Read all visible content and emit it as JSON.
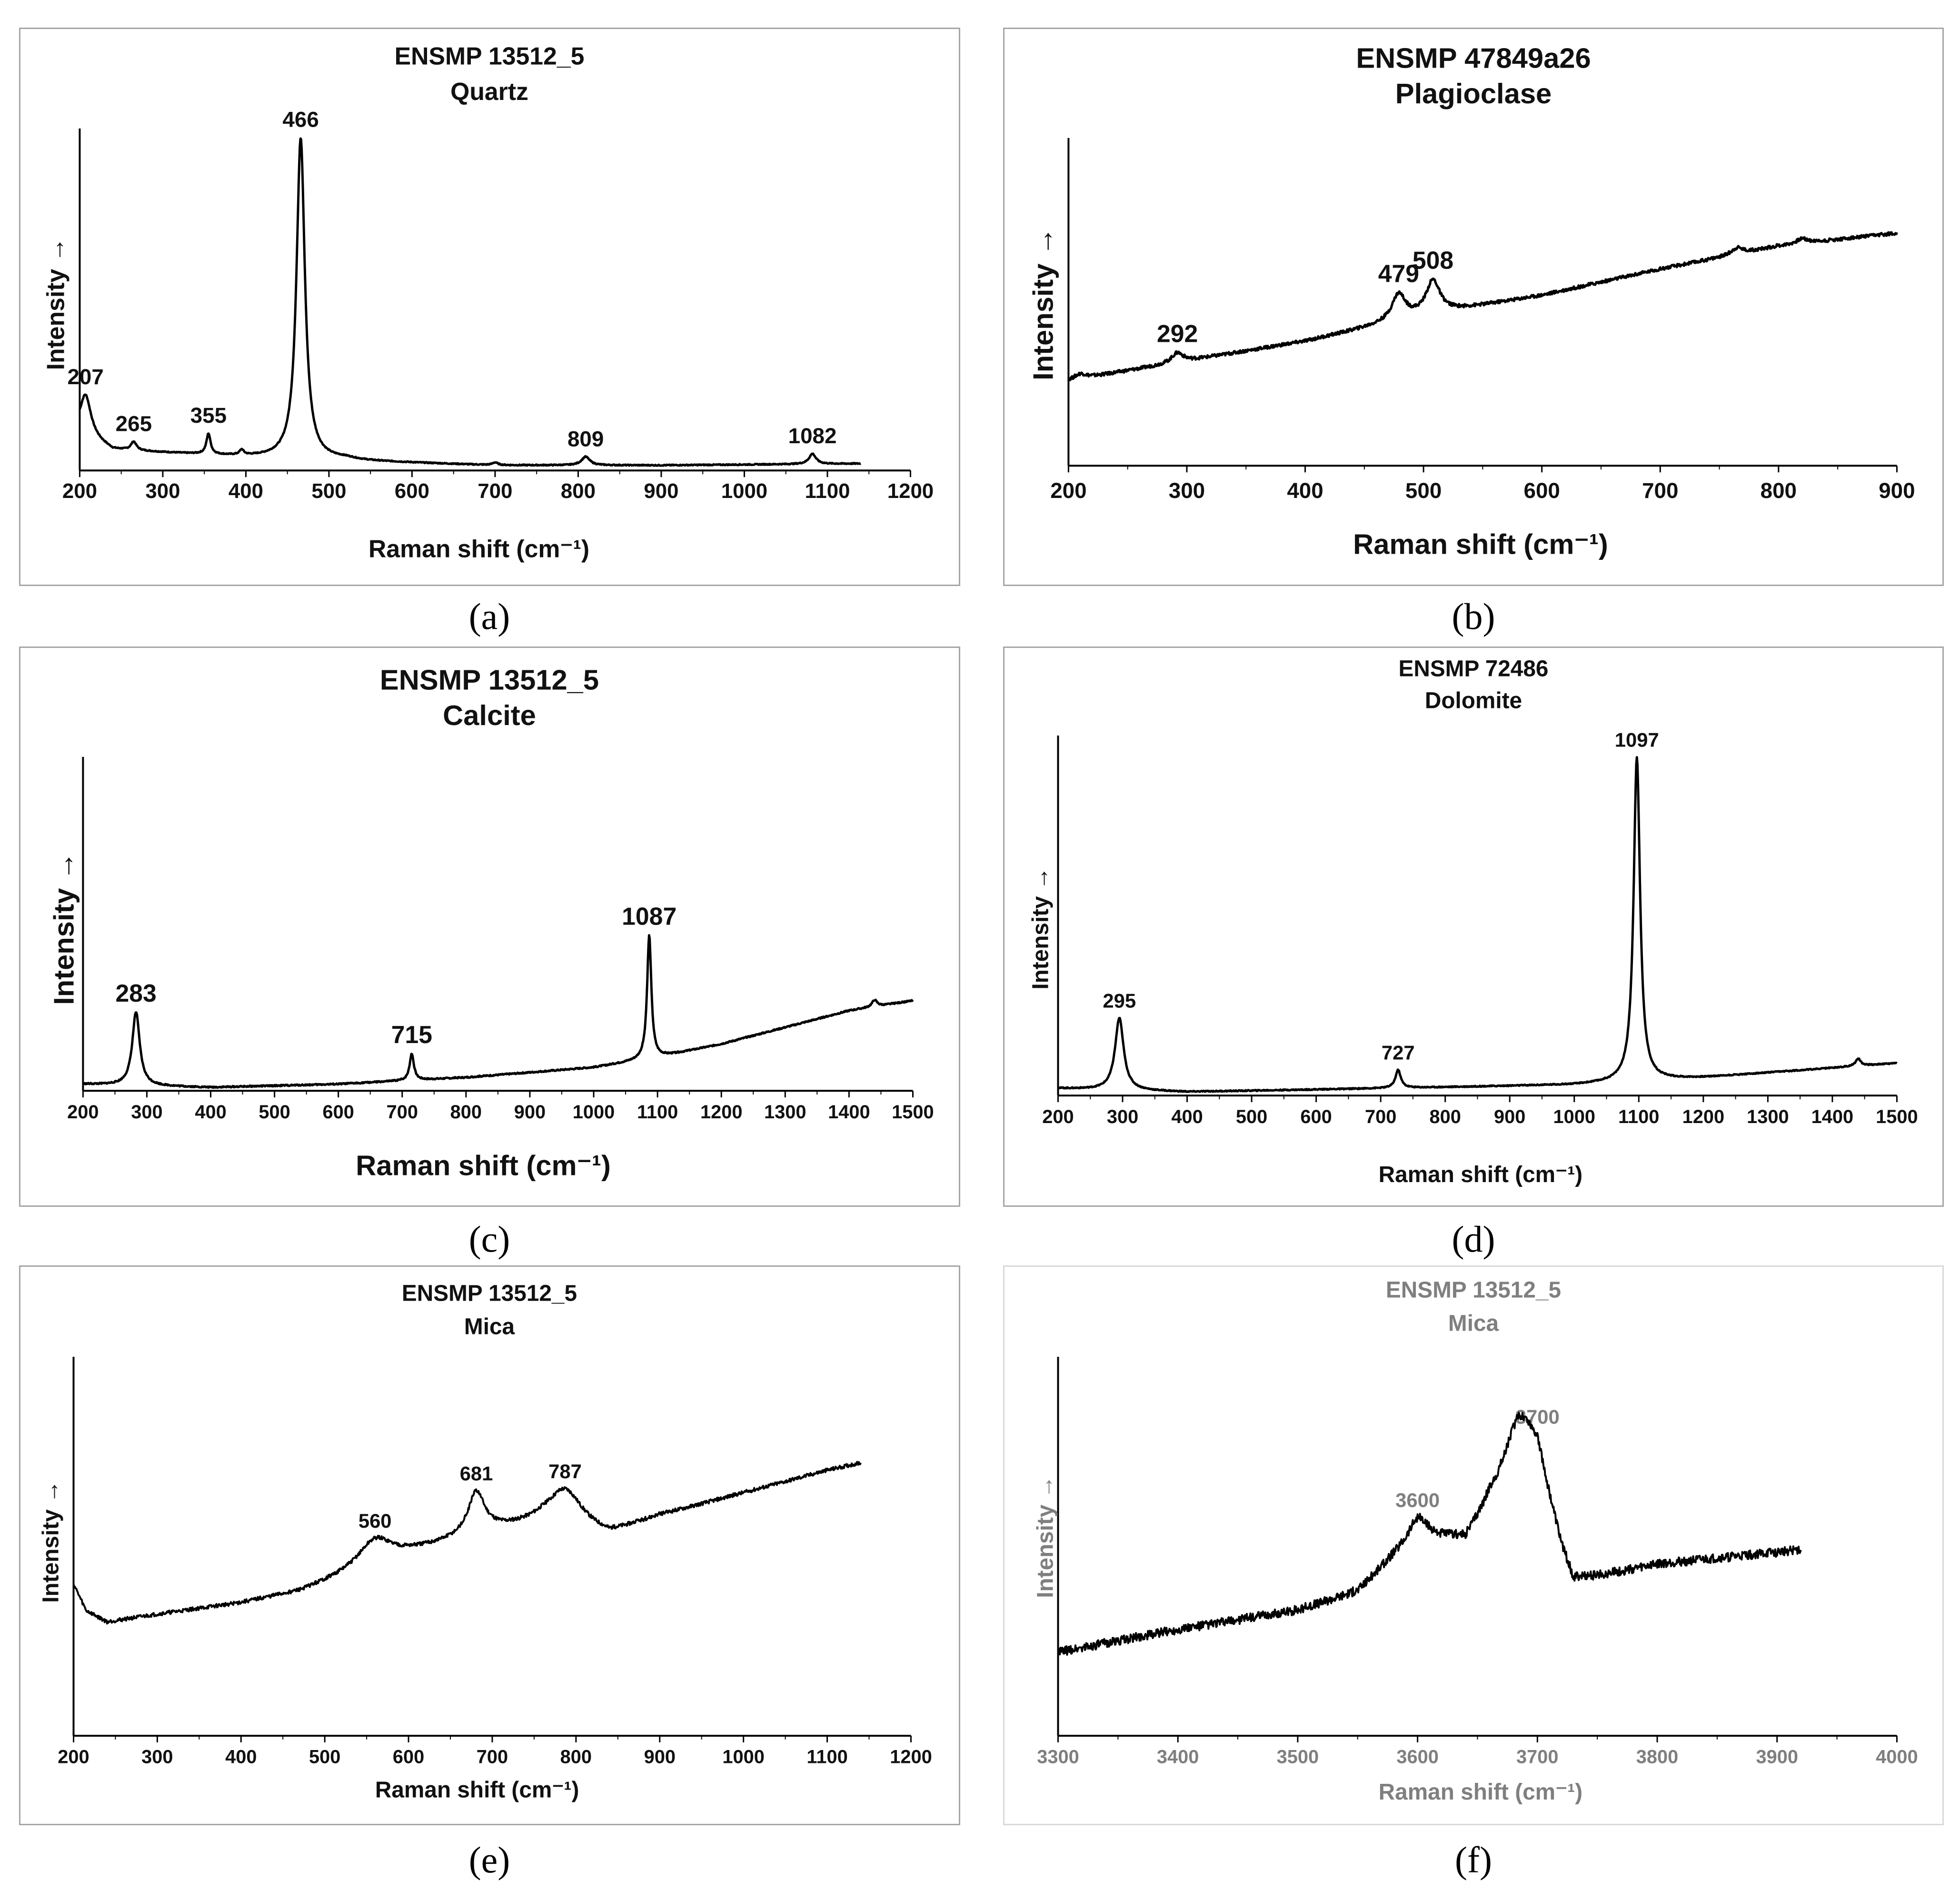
{
  "chart_data": [
    {
      "id": "a",
      "type": "line",
      "caption": "(a)",
      "title": "ENSMP 13512_5",
      "subtitle": "Quartz",
      "xlabel": "Raman shift (cm⁻¹)",
      "ylabel": "Intensity →",
      "xlim": [
        200,
        1200
      ],
      "ylim": [
        0,
        100
      ],
      "xticks": [
        "200",
        "300",
        "400",
        "500",
        "600",
        "700",
        "800",
        "900",
        "1000",
        "1100",
        "1200"
      ],
      "x_end": 1140,
      "baseline": [
        [
          200,
          11
        ],
        [
          240,
          6
        ],
        [
          400,
          4
        ],
        [
          500,
          3
        ],
        [
          700,
          1.5
        ],
        [
          900,
          1.5
        ],
        [
          1140,
          2
        ]
      ],
      "noise": 0.15,
      "peaks": [
        [
          207,
          12,
          8
        ],
        [
          265,
          2.5,
          4
        ],
        [
          355,
          6,
          3
        ],
        [
          395,
          1.5,
          3
        ],
        [
          466,
          94,
          6
        ],
        [
          520,
          0.5,
          15
        ],
        [
          700,
          0.8,
          4
        ],
        [
          809,
          2.5,
          6
        ],
        [
          1082,
          3,
          5
        ]
      ],
      "peak_labels": [
        {
          "x": 207,
          "label": "207"
        },
        {
          "x": 265,
          "label": "265"
        },
        {
          "x": 355,
          "label": "355"
        },
        {
          "x": 466,
          "label": "466"
        },
        {
          "x": 809,
          "label": "809"
        },
        {
          "x": 1082,
          "label": "1082"
        }
      ]
    },
    {
      "id": "b",
      "type": "line",
      "caption": "(b)",
      "title": "ENSMP 47849a26",
      "subtitle": "Plagioclase",
      "xlabel": "Raman shift (cm⁻¹)",
      "ylabel": "Intensity →",
      "xlim": [
        200,
        900
      ],
      "ylim": [
        0,
        100
      ],
      "xticks": [
        "200",
        "300",
        "400",
        "500",
        "600",
        "700",
        "800",
        "900"
      ],
      "x_end": 900,
      "baseline": [
        [
          200,
          26
        ],
        [
          300,
          32
        ],
        [
          400,
          38
        ],
        [
          500,
          46
        ],
        [
          600,
          52
        ],
        [
          700,
          60
        ],
        [
          800,
          67
        ],
        [
          900,
          71
        ]
      ],
      "noise": 0.5,
      "peaks": [
        [
          210,
          1.5,
          6
        ],
        [
          292,
          3,
          6
        ],
        [
          479,
          8,
          7
        ],
        [
          508,
          10,
          7
        ],
        [
          765,
          2,
          6
        ],
        [
          820,
          1.5,
          6
        ]
      ],
      "peak_labels": [
        {
          "x": 292,
          "label": "292"
        },
        {
          "x": 479,
          "label": "479"
        },
        {
          "x": 508,
          "label": "508"
        }
      ]
    },
    {
      "id": "c",
      "type": "line",
      "caption": "(c)",
      "title": "ENSMP 13512_5",
      "subtitle": "Calcite",
      "xlabel": "Raman shift (cm⁻¹)",
      "ylabel": "Intensity →",
      "xlim": [
        200,
        1500
      ],
      "ylim": [
        0,
        100
      ],
      "xticks": [
        "200",
        "300",
        "400",
        "500",
        "600",
        "700",
        "800",
        "900",
        "1000",
        "1100",
        "1200",
        "1300",
        "1400",
        "1500"
      ],
      "x_end": 1500,
      "baseline": [
        [
          200,
          2
        ],
        [
          400,
          1
        ],
        [
          600,
          2
        ],
        [
          800,
          4
        ],
        [
          1000,
          7
        ],
        [
          1100,
          10
        ],
        [
          1200,
          14
        ],
        [
          1300,
          19
        ],
        [
          1400,
          24
        ],
        [
          1500,
          27
        ]
      ],
      "noise": 0.2,
      "peaks": [
        [
          283,
          22,
          7
        ],
        [
          715,
          8,
          4
        ],
        [
          1087,
          37,
          4
        ],
        [
          1440,
          2,
          5
        ]
      ],
      "peak_labels": [
        {
          "x": 283,
          "label": "283"
        },
        {
          "x": 715,
          "label": "715"
        },
        {
          "x": 1087,
          "label": "1087"
        }
      ]
    },
    {
      "id": "d",
      "type": "line",
      "caption": "(d)",
      "title": "ENSMP 72486",
      "subtitle": "Dolomite",
      "xlabel": "Raman shift (cm⁻¹)",
      "ylabel": "Intensity →",
      "xlim": [
        200,
        1500
      ],
      "ylim": [
        0,
        100
      ],
      "xticks": [
        "200",
        "300",
        "400",
        "500",
        "600",
        "700",
        "800",
        "900",
        "1000",
        "1100",
        "1200",
        "1300",
        "1400",
        "1500"
      ],
      "x_end": 1500,
      "baseline": [
        [
          200,
          2
        ],
        [
          400,
          1
        ],
        [
          700,
          2
        ],
        [
          1000,
          3
        ],
        [
          1200,
          5
        ],
        [
          1500,
          9
        ]
      ],
      "noise": 0.15,
      "peaks": [
        [
          295,
          20,
          8
        ],
        [
          727,
          5,
          5
        ],
        [
          1097,
          90,
          6
        ],
        [
          1440,
          2,
          5
        ]
      ],
      "peak_labels": [
        {
          "x": 295,
          "label": "295"
        },
        {
          "x": 727,
          "label": "727"
        },
        {
          "x": 1097,
          "label": "1097"
        }
      ]
    },
    {
      "id": "e",
      "type": "line",
      "caption": "(e)",
      "title": "ENSMP 13512_5",
      "subtitle": "Mica",
      "xlabel": "Raman shift (cm⁻¹)",
      "ylabel": "Intensity →",
      "xlim": [
        200,
        1200
      ],
      "ylim": [
        0,
        100
      ],
      "xticks": [
        "200",
        "300",
        "400",
        "500",
        "600",
        "700",
        "800",
        "900",
        "1000",
        "1100",
        "1200"
      ],
      "x_end": 1140,
      "baseline": [
        [
          200,
          40
        ],
        [
          215,
          33
        ],
        [
          240,
          30
        ],
        [
          300,
          32
        ],
        [
          400,
          35
        ],
        [
          470,
          38
        ],
        [
          600,
          48
        ],
        [
          700,
          54
        ],
        [
          760,
          56
        ],
        [
          840,
          53
        ],
        [
          900,
          58
        ],
        [
          1000,
          64
        ],
        [
          1100,
          70
        ],
        [
          1140,
          72
        ]
      ],
      "noise": 0.5,
      "peaks": [
        [
          560,
          7,
          25
        ],
        [
          681,
          11,
          12
        ],
        [
          787,
          10,
          25
        ]
      ],
      "peak_labels": [
        {
          "x": 560,
          "label": "560"
        },
        {
          "x": 681,
          "label": "681"
        },
        {
          "x": 787,
          "label": "787"
        }
      ]
    },
    {
      "id": "f",
      "type": "line",
      "caption": "(f)",
      "gray": true,
      "title": "ENSMP 13512_5",
      "subtitle": "Mica",
      "xlabel": "Raman shift (cm⁻¹)",
      "ylabel": "Intensity →",
      "xlim": [
        3300,
        4000
      ],
      "ylim": [
        0,
        100
      ],
      "xticks": [
        "3300",
        "3400",
        "3500",
        "3600",
        "3700",
        "3800",
        "3900",
        "4000"
      ],
      "x_end": 3920,
      "baseline": [
        [
          3300,
          22
        ],
        [
          3400,
          28
        ],
        [
          3500,
          33
        ],
        [
          3550,
          38
        ],
        [
          3580,
          47
        ],
        [
          3600,
          52
        ],
        [
          3640,
          51
        ],
        [
          3660,
          60
        ],
        [
          3700,
          70
        ],
        [
          3720,
          48
        ],
        [
          3730,
          40
        ],
        [
          3800,
          45
        ],
        [
          3920,
          49
        ]
      ],
      "noise": 1.2,
      "peaks": [
        [
          3600,
          5,
          10
        ],
        [
          3685,
          18,
          16
        ]
      ],
      "peak_labels": [
        {
          "x": 3600,
          "label": "3600"
        },
        {
          "x": 3700,
          "label": "3700"
        }
      ]
    }
  ]
}
